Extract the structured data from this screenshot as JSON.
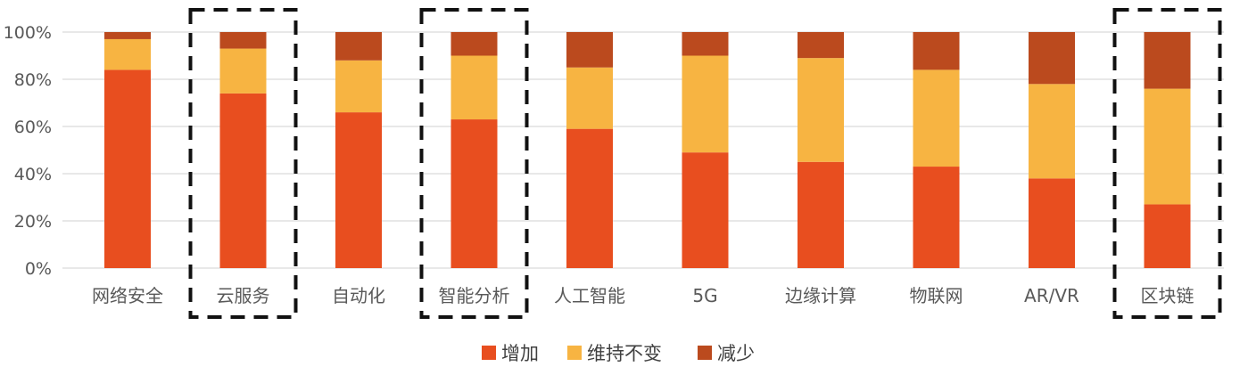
{
  "chart_data": {
    "type": "bar",
    "stacked": true,
    "categories": [
      "网络安全",
      "云服务",
      "自动化",
      "智能分析",
      "人工智能",
      "5G",
      "边缘计算",
      "物联网",
      "AR/VR",
      "区块链"
    ],
    "series": [
      {
        "name": "增加",
        "color": "#e84e1f",
        "values": [
          84,
          74,
          66,
          63,
          59,
          49,
          45,
          43,
          38,
          27
        ]
      },
      {
        "name": "维持不变",
        "color": "#f7b442",
        "values": [
          13,
          19,
          22,
          27,
          26,
          41,
          44,
          41,
          40,
          49
        ]
      },
      {
        "name": "减少",
        "color": "#bb4a1e",
        "values": [
          3,
          7,
          12,
          10,
          15,
          10,
          11,
          16,
          22,
          24
        ]
      }
    ],
    "y_ticks": [
      "0%",
      "20%",
      "40%",
      "60%",
      "80%",
      "100%"
    ],
    "ylim": [
      0,
      100
    ],
    "grid": true,
    "legend_position": "bottom",
    "highlighted_categories": [
      "云服务",
      "智能分析",
      "区块链"
    ],
    "title": "",
    "xlabel": "",
    "ylabel": ""
  }
}
